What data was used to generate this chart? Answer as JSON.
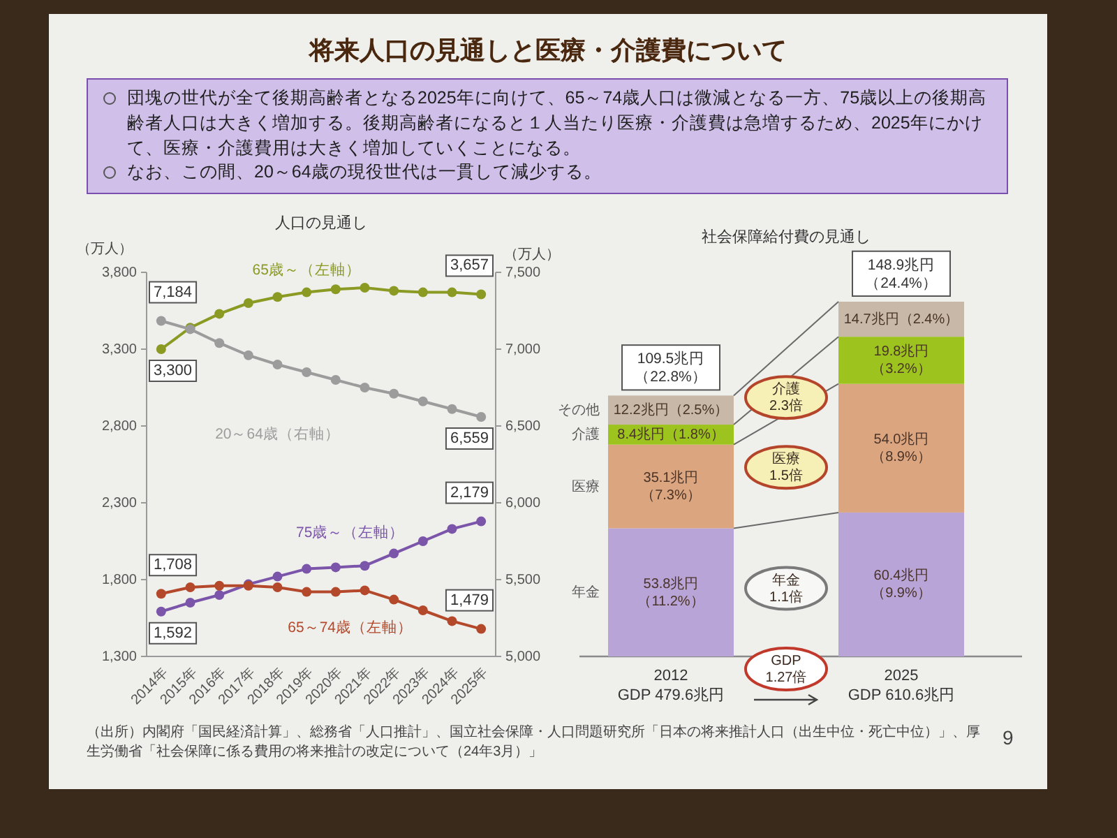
{
  "chart_data": [
    {
      "type": "other",
      "title": "将来人口の見通しと医療・介護費について",
      "annotations": [
        "団塊の世代が全て後期高齢者となる2025年に向けて、65～74歳人口は微減となる一方、75歳以上の後期高齢者人口は大きく増加する。後期高齢者になると１人当たり医療・介護費は急増するため、2025年にかけて、医療・介護費用は大きく増加していくことになる。",
        "なお、この間、20～64歳の現役世代は一貫して減少する。",
        "（出所）内閣府「国民経済計算」、総務省「人口推計」、国立社会保障・人口問題研究所「日本の将来推計人口（出生中位・死亡中位）」、厚生労働省「社会保障に係る費用の将来推計の改定について（24年3月）」",
        "9"
      ]
    },
    {
      "type": "line",
      "title": "人口の見通し",
      "ylabel": "（万人）",
      "y2label": "（万人）",
      "categories": [
        "2014年",
        "2015年",
        "2016年",
        "2017年",
        "2018年",
        "2019年",
        "2020年",
        "2021年",
        "2022年",
        "2023年",
        "2024年",
        "2025年"
      ],
      "ylim": [
        1300,
        3800
      ],
      "yticks": [
        {
          "value": 1300,
          "label": "1,300"
        },
        {
          "value": 1800,
          "label": "1,800"
        },
        {
          "value": 2300,
          "label": "2,300"
        },
        {
          "value": 2800,
          "label": "2,800"
        },
        {
          "value": 3300,
          "label": "3,300"
        },
        {
          "value": 3800,
          "label": "3,800"
        }
      ],
      "y2lim": [
        5000,
        7500
      ],
      "y2ticks": [
        {
          "value": 5000,
          "label": "5,000"
        },
        {
          "value": 5500,
          "label": "5,500"
        },
        {
          "value": 6000,
          "label": "6,000"
        },
        {
          "value": 6500,
          "label": "6,500"
        },
        {
          "value": 7000,
          "label": "7,000"
        },
        {
          "value": 7500,
          "label": "7,500"
        }
      ],
      "marker": "circle",
      "series": [
        {
          "name": "65歳～（左軸）",
          "color": "#8a9a22",
          "values": [
            3300,
            3440,
            3530,
            3600,
            3640,
            3670,
            3690,
            3700,
            3680,
            3670,
            3670,
            3657
          ],
          "value_labels": [
            "3,300",
            null,
            null,
            null,
            null,
            null,
            null,
            null,
            null,
            null,
            null,
            "3,657"
          ]
        },
        {
          "name": "20～64歳（右軸）",
          "color": "#9c9c9c",
          "axis": "y2",
          "values": [
            7184,
            7130,
            7040,
            6960,
            6900,
            6850,
            6800,
            6750,
            6710,
            6660,
            6610,
            6559
          ],
          "value_labels": [
            "7,184",
            null,
            null,
            null,
            null,
            null,
            null,
            null,
            null,
            null,
            null,
            "6,559"
          ]
        },
        {
          "name": "75歳～（左軸）",
          "color": "#7b55aa",
          "values": [
            1592,
            1650,
            1700,
            1770,
            1820,
            1870,
            1880,
            1890,
            1970,
            2050,
            2130,
            2179
          ],
          "value_labels": [
            "1,592",
            null,
            null,
            null,
            null,
            null,
            null,
            null,
            null,
            null,
            null,
            "2,179"
          ]
        },
        {
          "name": "65～74歳（左軸）",
          "color": "#b4482a",
          "values": [
            1708,
            1750,
            1760,
            1760,
            1750,
            1720,
            1720,
            1730,
            1670,
            1600,
            1530,
            1479
          ],
          "value_labels": [
            "1,708",
            null,
            null,
            null,
            null,
            null,
            null,
            null,
            null,
            null,
            null,
            "1,479"
          ]
        }
      ]
    },
    {
      "type": "bar",
      "stacked": true,
      "title": "社会保障給付費の見通し",
      "categories": [
        "2012\nGDP 479.6兆円",
        "2025\nGDP 610.6兆円"
      ],
      "series": [
        {
          "name": "年金",
          "color": "#b9a4d8",
          "values": [
            53.8,
            60.4
          ],
          "value_labels": [
            "53.8兆円（11.2%）",
            "60.4兆円（9.9%）"
          ]
        },
        {
          "name": "医療",
          "color": "#dba67f",
          "values": [
            35.1,
            54.0
          ],
          "value_labels": [
            "35.1兆円（7.3%）",
            "54.0兆円（8.9%）"
          ]
        },
        {
          "name": "介護",
          "color": "#9dc41e",
          "values": [
            8.4,
            19.8
          ],
          "value_labels": [
            "8.4兆円（1.8%）",
            "19.8兆円（3.2%）"
          ]
        },
        {
          "name": "その他",
          "color": "#c7b8a8",
          "values": [
            12.2,
            14.7
          ],
          "value_labels": [
            "12.2兆円（2.5%）",
            "14.7兆円（2.4%）"
          ]
        }
      ],
      "totals": [
        "109.5兆円（22.8%）",
        "148.9兆円（24.4%）"
      ],
      "annotations": [
        "介護\n2.3倍",
        "医療\n1.5倍",
        "年金\n1.1倍",
        "GDP\n1.27倍"
      ]
    }
  ]
}
